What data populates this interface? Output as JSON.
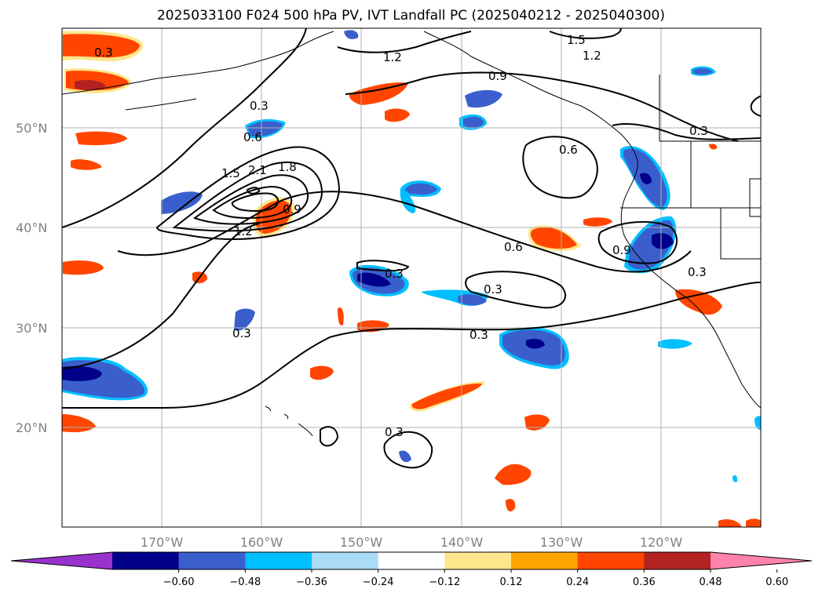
{
  "title": "2025033100 F024 500 hPa PV, IVT Landfall PC (2025040212 - 2025040300)",
  "map": {
    "lon_range": [
      -180,
      -110
    ],
    "lat_range": [
      10,
      60
    ],
    "lat_labels": [
      "20°N",
      "30°N",
      "40°N",
      "50°N"
    ],
    "lon_labels": [
      "170°W",
      "160°W",
      "150°W",
      "140°W",
      "130°W",
      "120°W"
    ],
    "contour_labels": [
      "0.3",
      "0.3",
      "0.3",
      "0.3",
      "0.3",
      "0.3",
      "0.3",
      "0.6",
      "0.6",
      "0.6",
      "0.9",
      "0.9",
      "0.9",
      "1.2",
      "1.2",
      "1.2",
      "1.5",
      "1.5",
      "1.8",
      "2.1",
      "0.3",
      "0.3"
    ]
  },
  "colorbar": {
    "ticks": [
      "−0.60",
      "−0.48",
      "−0.36",
      "−0.24",
      "−0.12",
      "0.12",
      "0.24",
      "0.36",
      "0.48",
      "0.60"
    ],
    "colors": [
      "#9932cc",
      "#00008b",
      "#3a5fcd",
      "#00bfff",
      "#aadcf8",
      "#ffffff",
      "#ffe68c",
      "#ffa500",
      "#ff4500",
      "#b22222",
      "#ff82ab"
    ]
  }
}
